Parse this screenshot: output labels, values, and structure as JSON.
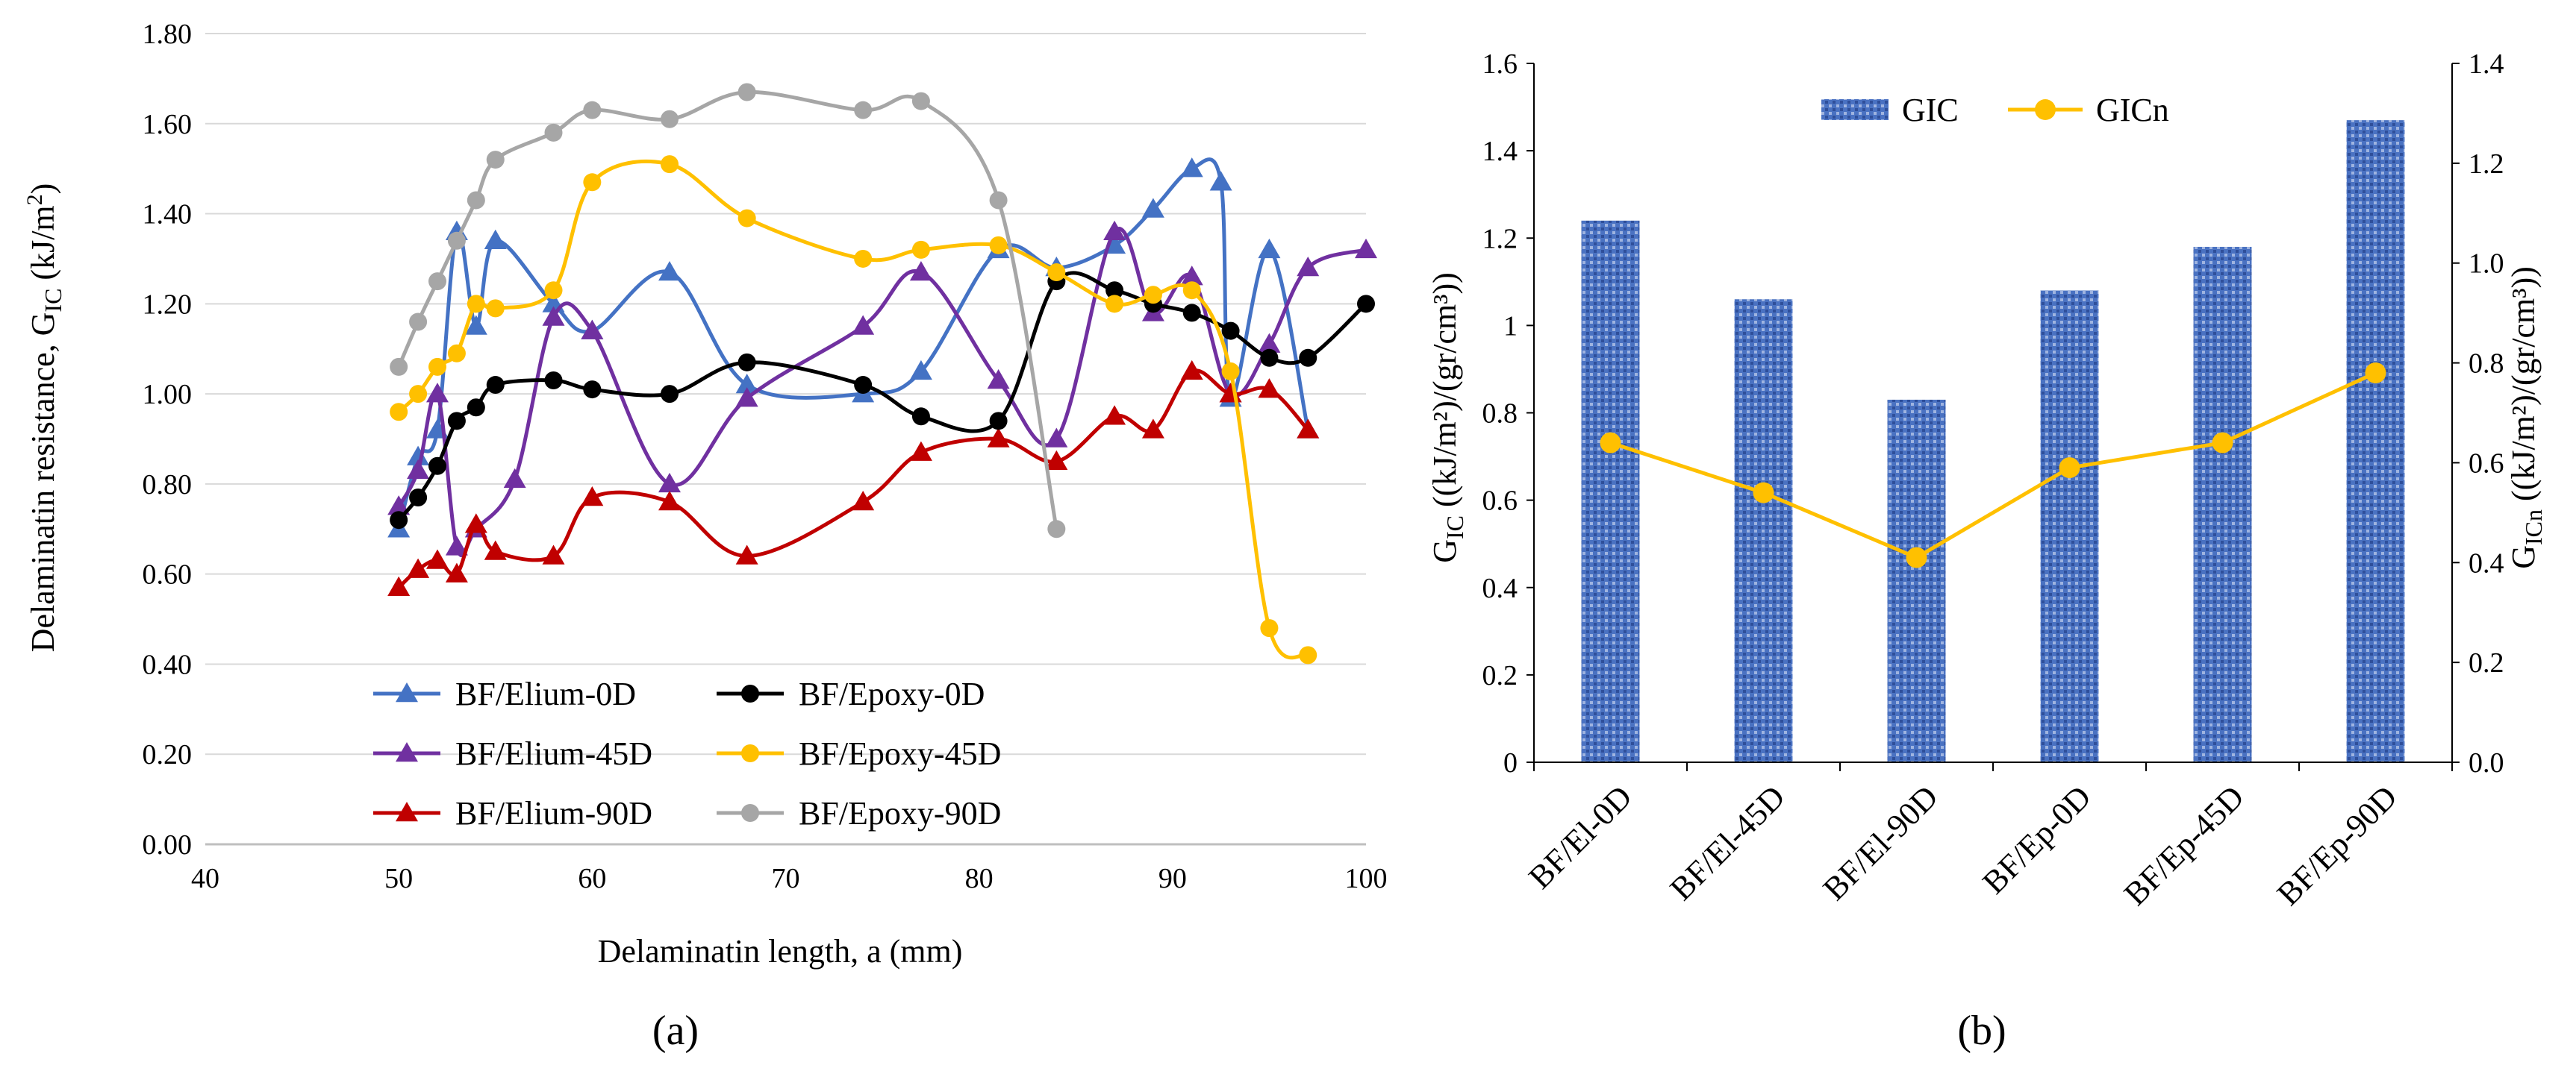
{
  "chart_data": [
    {
      "type": "line",
      "panel_label": "(a)",
      "xlabel": "Delaminatin length, a (mm)",
      "ylabel": {
        "main": "Delaminatin resistance, G",
        "sub": "IC",
        "unit_pre": " (kJ/m",
        "unit_sup": "2",
        "unit_post": ")"
      },
      "xlim": [
        40,
        100
      ],
      "ylim": [
        0,
        1.8
      ],
      "xticks": [
        "40",
        "50",
        "60",
        "70",
        "80",
        "90",
        "100"
      ],
      "yticks": [
        "0.00",
        "0.20",
        "0.40",
        "0.60",
        "0.80",
        "1.00",
        "1.20",
        "1.40",
        "1.60",
        "1.80"
      ],
      "legend_position": "bottom-center",
      "series": [
        {
          "name": "BF/Elium-0D",
          "color": "#4472C4",
          "marker": "triangle",
          "x": [
            50,
            51,
            52,
            53,
            54,
            55,
            58,
            60,
            64,
            68,
            74,
            77,
            81,
            84,
            87,
            89,
            91,
            92.5,
            93,
            95,
            97
          ],
          "y": [
            0.7,
            0.86,
            0.92,
            1.36,
            1.15,
            1.34,
            1.2,
            1.14,
            1.27,
            1.02,
            1.0,
            1.05,
            1.32,
            1.28,
            1.33,
            1.41,
            1.5,
            1.47,
            0.99,
            1.32,
            0.92
          ]
        },
        {
          "name": "BF/Elium-45D",
          "color": "#7030A0",
          "marker": "triangle",
          "x": [
            50,
            51,
            52,
            53,
            54,
            56,
            58,
            60,
            64,
            68,
            74,
            77,
            81,
            84,
            87,
            89,
            91,
            93,
            95,
            97,
            100
          ],
          "y": [
            0.75,
            0.83,
            1.0,
            0.66,
            0.7,
            0.81,
            1.17,
            1.14,
            0.8,
            0.99,
            1.15,
            1.27,
            1.03,
            0.9,
            1.36,
            1.18,
            1.26,
            1.0,
            1.11,
            1.28,
            1.32
          ]
        },
        {
          "name": "BF/Elium-90D",
          "color": "#C00000",
          "marker": "triangle",
          "x": [
            50,
            51,
            52,
            53,
            54,
            55,
            58,
            60,
            64,
            68,
            74,
            77,
            81,
            84,
            87,
            89,
            91,
            93,
            95,
            97
          ],
          "y": [
            0.57,
            0.61,
            0.63,
            0.6,
            0.71,
            0.65,
            0.64,
            0.77,
            0.76,
            0.64,
            0.76,
            0.87,
            0.9,
            0.85,
            0.95,
            0.92,
            1.05,
            1.0,
            1.01,
            0.92
          ]
        },
        {
          "name": "BF/Epoxy-0D",
          "color": "#000000",
          "marker": "circle",
          "x": [
            50,
            51,
            52,
            53,
            54,
            55,
            58,
            60,
            64,
            68,
            74,
            77,
            81,
            84,
            87,
            89,
            91,
            93,
            95,
            97,
            100
          ],
          "y": [
            0.72,
            0.77,
            0.84,
            0.94,
            0.97,
            1.02,
            1.03,
            1.01,
            1.0,
            1.07,
            1.02,
            0.95,
            0.94,
            1.25,
            1.23,
            1.2,
            1.18,
            1.14,
            1.08,
            1.08,
            1.2
          ]
        },
        {
          "name": "BF/Epoxy-45D",
          "color": "#FFC000",
          "marker": "circle",
          "x": [
            50,
            51,
            52,
            53,
            54,
            55,
            58,
            60,
            64,
            68,
            74,
            77,
            81,
            84,
            87,
            89,
            91,
            93,
            95,
            97
          ],
          "y": [
            0.96,
            1.0,
            1.06,
            1.09,
            1.2,
            1.19,
            1.23,
            1.47,
            1.51,
            1.39,
            1.3,
            1.32,
            1.33,
            1.27,
            1.2,
            1.22,
            1.23,
            1.05,
            0.48,
            0.42
          ]
        },
        {
          "name": "BF/Epoxy-90D",
          "color": "#A6A6A6",
          "marker": "circle",
          "x": [
            50,
            51,
            52,
            53,
            54,
            55,
            58,
            60,
            64,
            68,
            74,
            77,
            81,
            84
          ],
          "y": [
            1.06,
            1.16,
            1.25,
            1.34,
            1.43,
            1.52,
            1.58,
            1.63,
            1.61,
            1.67,
            1.63,
            1.65,
            1.43,
            0.7
          ]
        }
      ]
    },
    {
      "type": "bar",
      "panel_label": "(b)",
      "categories": [
        "BF/El-0D",
        "BF/El-45D",
        "BF/El-90D",
        "BF/Ep-0D",
        "BF/Ep-45D",
        "BF/Ep-90D"
      ],
      "ylim": [
        0,
        1.6
      ],
      "y2lim": [
        0,
        1.4
      ],
      "yticks": [
        "0",
        "0.2",
        "0.4",
        "0.6",
        "0.8",
        "1",
        "1.2",
        "1.4",
        "1.6"
      ],
      "y2ticks": [
        "0.0",
        "0.2",
        "0.4",
        "0.6",
        "0.8",
        "1.0",
        "1.2",
        "1.4"
      ],
      "ylabel": {
        "main": "G",
        "sub": "IC",
        "unit": "  ((kJ/m²)/(gr/cm³))"
      },
      "y2label": {
        "main": "G",
        "sub": "ICn",
        "unit": "  ((kJ/m²)/(gr/cm³))"
      },
      "legend_position": "top-center",
      "series": [
        {
          "name": "GIC",
          "kind": "bar",
          "axis": "left",
          "color": "#4472C4",
          "values": [
            1.24,
            1.06,
            0.83,
            1.08,
            1.18,
            1.47
          ]
        },
        {
          "name": "GICn",
          "kind": "line",
          "axis": "right",
          "color": "#FFC000",
          "values": [
            0.64,
            0.54,
            0.41,
            0.59,
            0.64,
            0.78
          ]
        }
      ]
    }
  ]
}
